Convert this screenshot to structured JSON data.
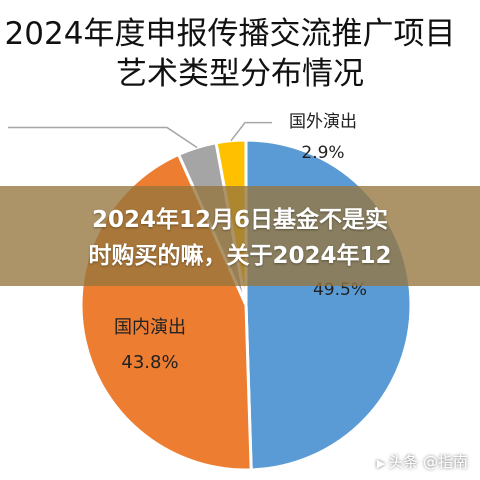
{
  "chart_data": {
    "type": "pie",
    "title_lines": [
      "2024年度申报传播交流推广项目",
      "艺术类型分布情况"
    ],
    "slices": [
      {
        "label": "",
        "value": 49.5,
        "value_label": "49.5%",
        "color": "#5b9bd5"
      },
      {
        "label": "国内演出",
        "value": 43.8,
        "value_label": "43.8%",
        "color": "#ed7d31"
      },
      {
        "label": "",
        "value": 3.8,
        "value_label": "",
        "color": "#a5a5a5"
      },
      {
        "label": "国外演出",
        "value": 2.9,
        "value_label": "2.9%",
        "color": "#ffc000"
      }
    ],
    "start_angle_deg": 0,
    "legend": "none"
  },
  "overlay": {
    "line1": "2024年12月6日基金不是实",
    "line2": "时购买的嘛，关于2024年12"
  },
  "watermark": {
    "text": "头条 @指南",
    "icon": "play-icon"
  }
}
